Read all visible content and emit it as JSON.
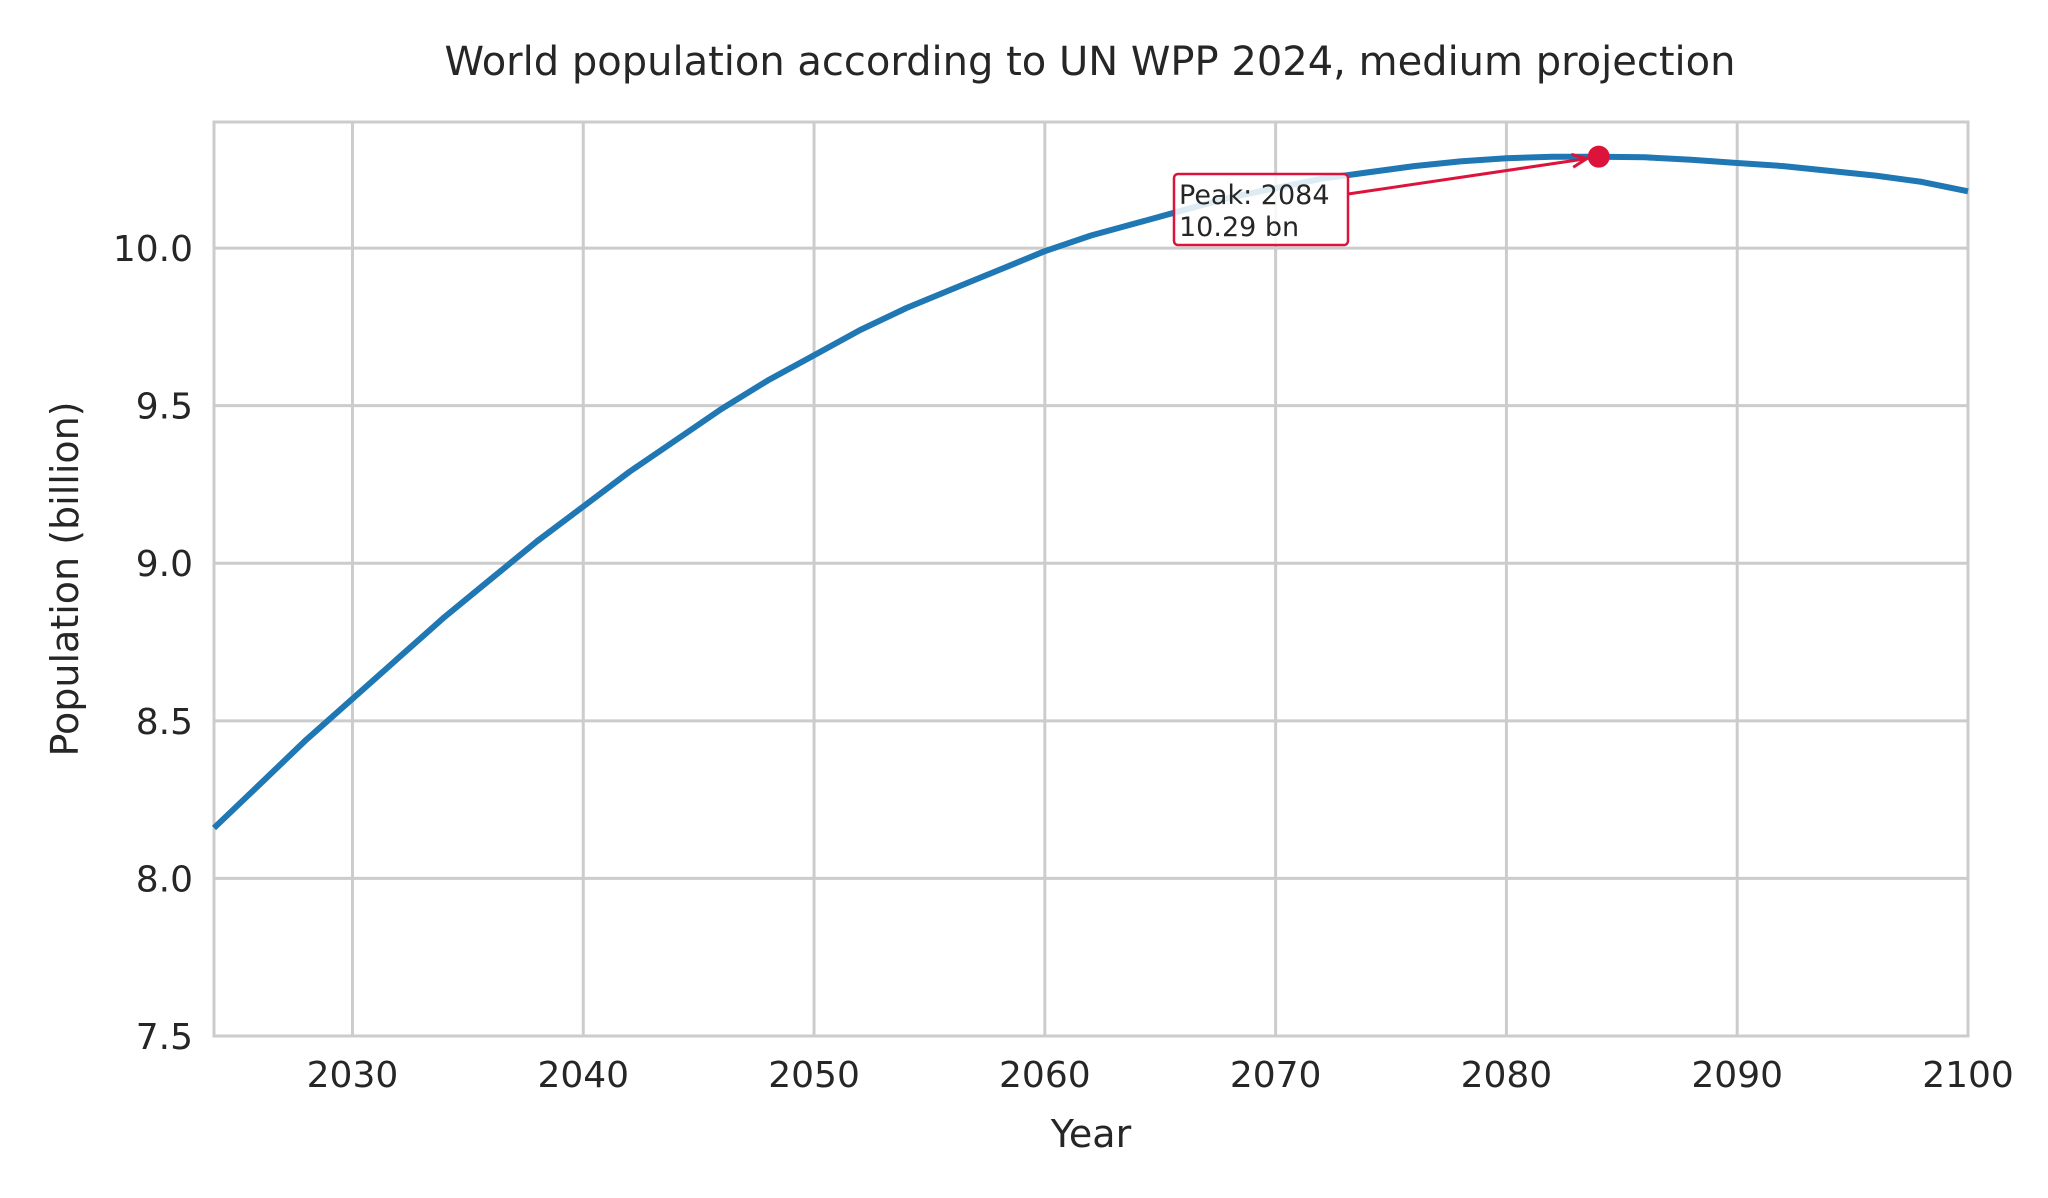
{
  "chart_data": {
    "type": "line",
    "title": "World population according to UN WPP 2024, medium projection",
    "xlabel": "Year",
    "ylabel": "Population (billion)",
    "xlim": [
      2024,
      2100
    ],
    "ylim": [
      7.5,
      10.4
    ],
    "xticks": [
      2030,
      2040,
      2050,
      2060,
      2070,
      2080,
      2090,
      2100
    ],
    "yticks": [
      7.5,
      8.0,
      8.5,
      9.0,
      9.5,
      10.0
    ],
    "ytick_labels": [
      "7.5",
      "8.0",
      "8.5",
      "9.0",
      "9.5",
      "10.0"
    ],
    "grid": true,
    "series": [
      {
        "x": [
          2024,
          2026,
          2028,
          2030,
          2032,
          2034,
          2036,
          2038,
          2040,
          2042,
          2044,
          2046,
          2048,
          2050,
          2052,
          2054,
          2056,
          2058,
          2060,
          2062,
          2064,
          2066,
          2068,
          2070,
          2072,
          2074,
          2076,
          2078,
          2080,
          2082,
          2084,
          2086,
          2088,
          2090,
          2092,
          2094,
          2096,
          2098,
          2100
        ],
        "y": [
          8.16,
          8.3,
          8.44,
          8.57,
          8.7,
          8.83,
          8.95,
          9.07,
          9.18,
          9.29,
          9.39,
          9.49,
          9.58,
          9.66,
          9.74,
          9.81,
          9.87,
          9.93,
          9.99,
          10.04,
          10.08,
          10.12,
          10.16,
          10.19,
          10.22,
          10.24,
          10.26,
          10.275,
          10.285,
          10.29,
          10.29,
          10.288,
          10.28,
          10.27,
          10.26,
          10.245,
          10.23,
          10.21,
          10.18
        ],
        "color": "#1f77b4"
      }
    ],
    "annotation": {
      "x": 2084,
      "y": 10.29,
      "line1": "Peak: 2084",
      "line2": "10.29 bn",
      "color": "#dc143c"
    }
  }
}
